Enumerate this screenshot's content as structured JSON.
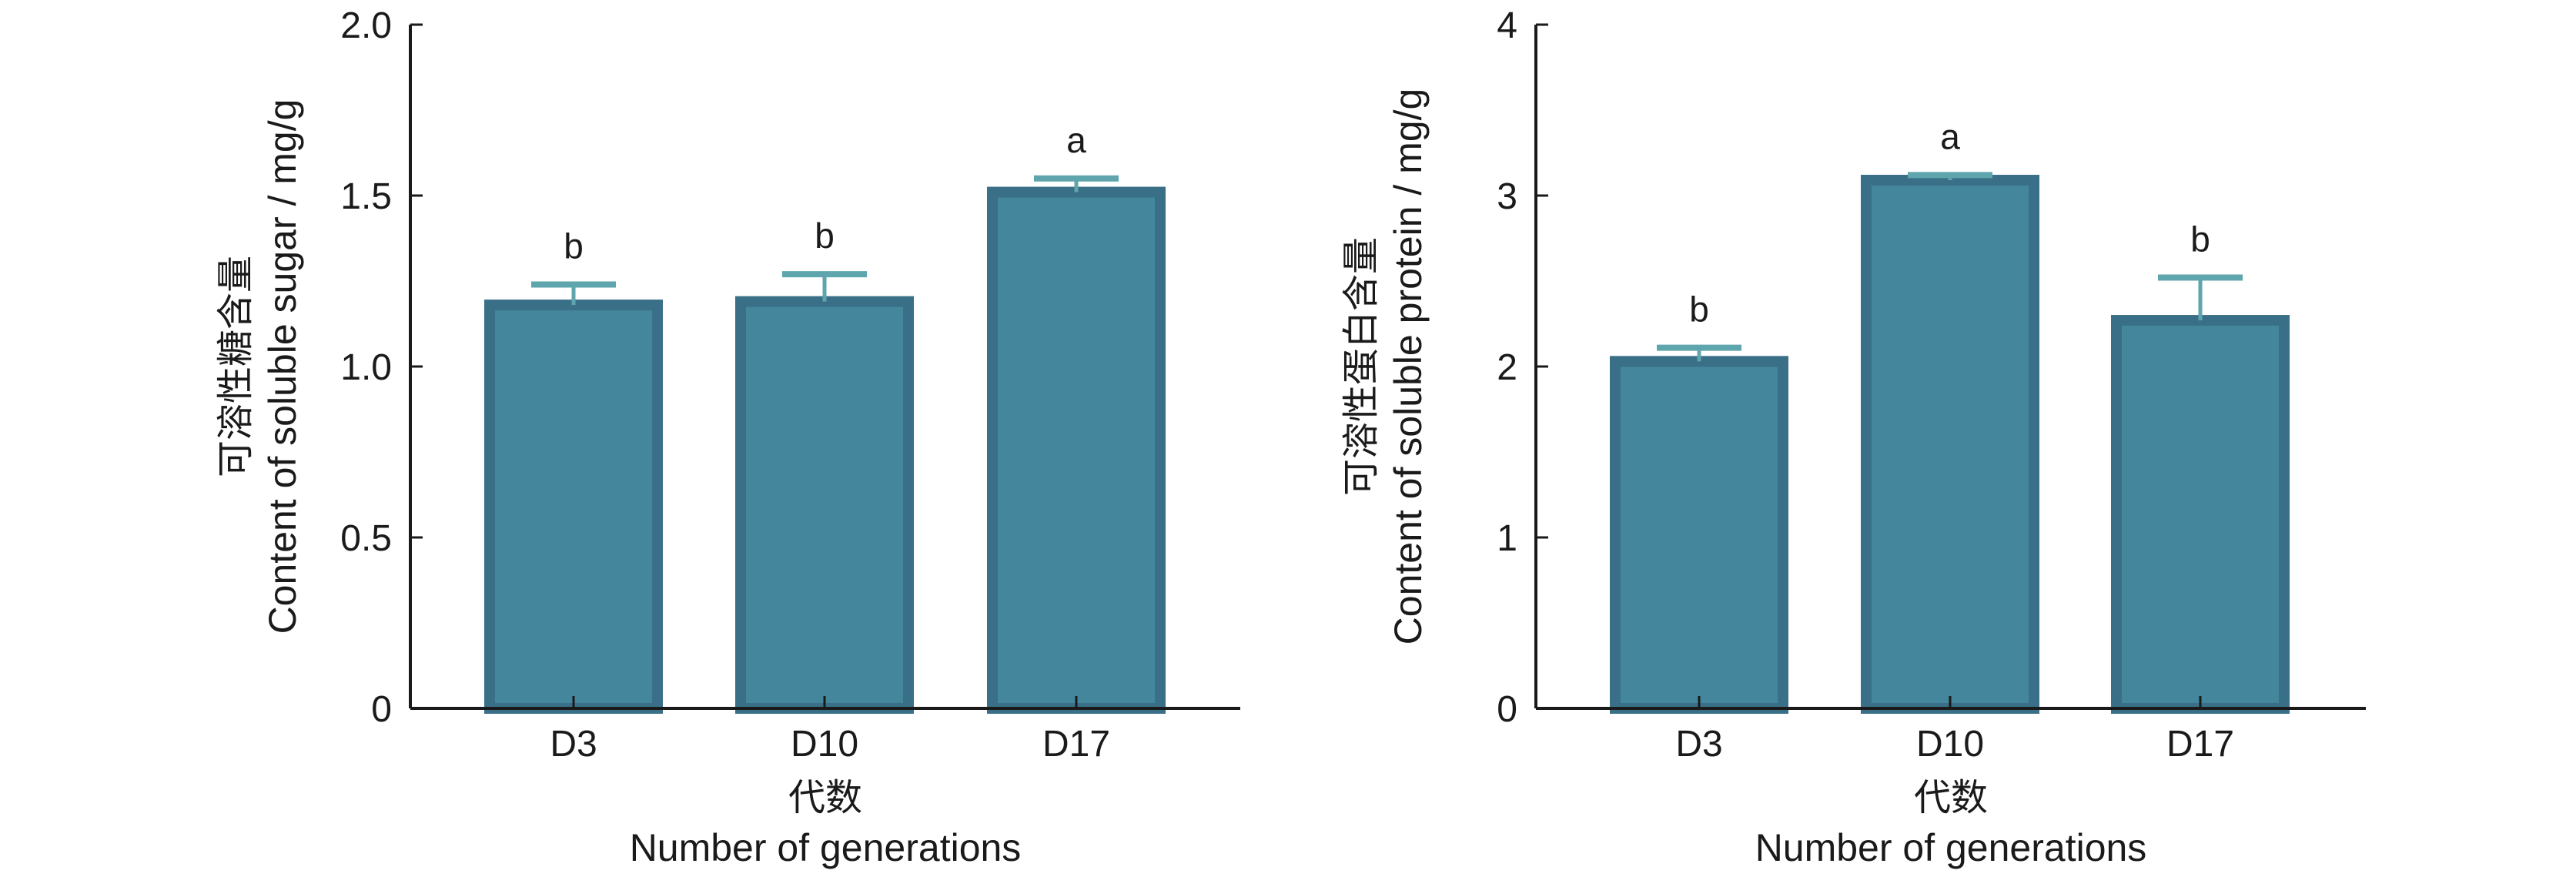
{
  "colors": {
    "bar_fill": "#44879c",
    "bar_border": "#3a6f88",
    "error_bar": "#5fa5ad",
    "axis": "#1a1a1a"
  },
  "chart_data": [
    {
      "type": "bar",
      "title": "",
      "categories": [
        "D3",
        "D10",
        "D17"
      ],
      "values": [
        1.18,
        1.19,
        1.51
      ],
      "errors": [
        0.06,
        0.08,
        0.04
      ],
      "significance": [
        "b",
        "b",
        "a"
      ],
      "xlabel_cn": "代数",
      "xlabel": "Number of generations",
      "ylabel_cn": "可溶性糖含量",
      "ylabel": "Content of soluble sugar / mg/g",
      "ylim": [
        0,
        2.0
      ],
      "yticks": [
        0,
        0.5,
        1.0,
        1.5,
        2.0
      ],
      "ytick_labels": [
        "0",
        "0.5",
        "1.0",
        "1.5",
        "2.0"
      ],
      "grid": false,
      "legend": "none"
    },
    {
      "type": "bar",
      "title": "",
      "categories": [
        "D3",
        "D10",
        "D17"
      ],
      "values": [
        2.03,
        3.09,
        2.27
      ],
      "errors": [
        0.08,
        0.03,
        0.25
      ],
      "significance": [
        "b",
        "a",
        "b"
      ],
      "xlabel_cn": "代数",
      "xlabel": "Number of generations",
      "ylabel_cn": "可溶性蛋白含量",
      "ylabel": "Content of soluble protein / mg/g",
      "ylim": [
        0,
        4
      ],
      "yticks": [
        0,
        1,
        2,
        3,
        4
      ],
      "ytick_labels": [
        "0",
        "1",
        "2",
        "3",
        "4"
      ],
      "grid": false,
      "legend": "none"
    }
  ]
}
